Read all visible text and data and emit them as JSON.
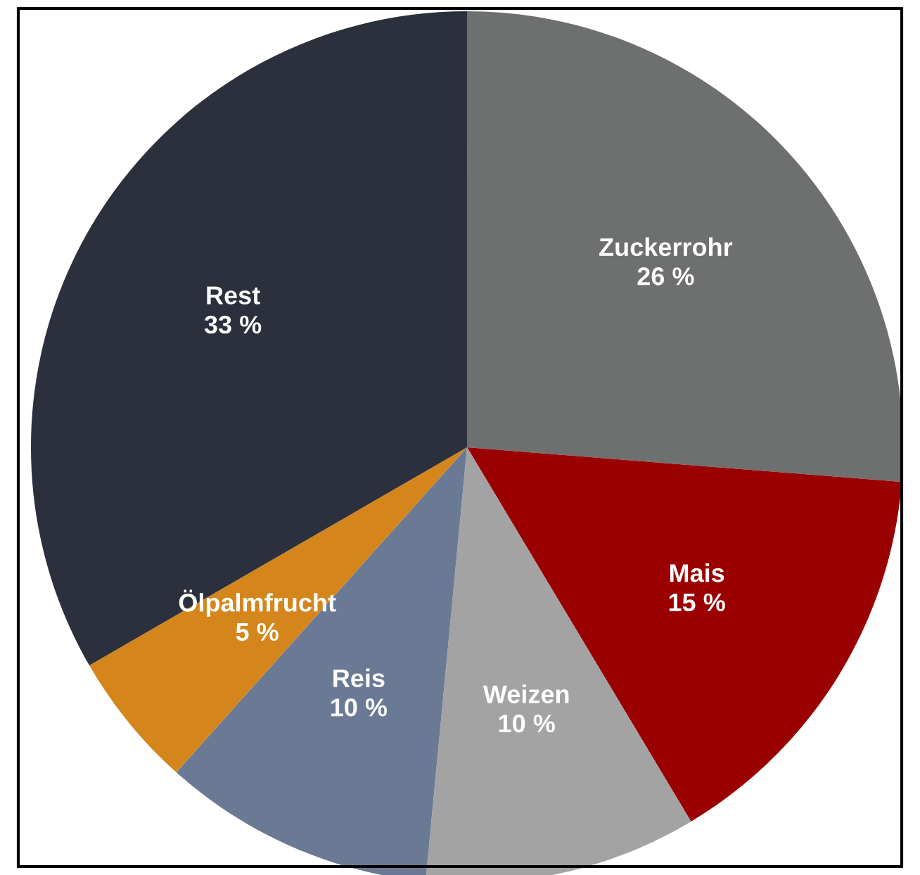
{
  "chart_data": {
    "type": "pie",
    "categories": [
      "Zuckerrohr",
      "Mais",
      "Weizen",
      "Reis",
      "Ölpalmfrucht",
      "Rest"
    ],
    "values": [
      26,
      15,
      10,
      10,
      5,
      33
    ],
    "colors": [
      "#6e7070",
      "#9b0000",
      "#a3a3a3",
      "#6b7a94",
      "#d4861c",
      "#2c303c"
    ],
    "value_labels": [
      "26 %",
      "15 %",
      "10 %",
      "10 %",
      "5 %",
      "33 %"
    ]
  }
}
